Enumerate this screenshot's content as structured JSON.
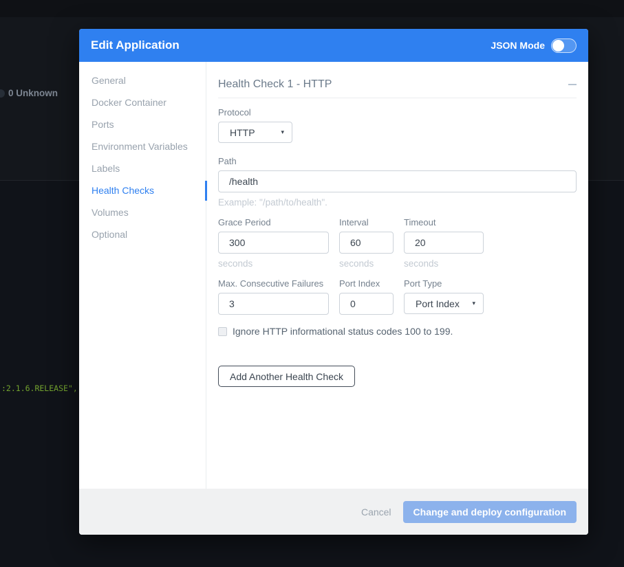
{
  "background": {
    "unknown_status": "0 Unknown",
    "code_snippet": ":2.1.6.RELEASE\","
  },
  "modal": {
    "title": "Edit Application",
    "json_mode": {
      "label": "JSON Mode",
      "enabled": false
    },
    "sidebar": {
      "items": [
        {
          "label": "General",
          "active": false
        },
        {
          "label": "Docker Container",
          "active": false
        },
        {
          "label": "Ports",
          "active": false
        },
        {
          "label": "Environment Variables",
          "active": false
        },
        {
          "label": "Labels",
          "active": false
        },
        {
          "label": "Health Checks",
          "active": true
        },
        {
          "label": "Volumes",
          "active": false
        },
        {
          "label": "Optional",
          "active": false
        }
      ]
    },
    "section": {
      "title": "Health Check 1 - HTTP"
    },
    "form": {
      "protocol": {
        "label": "Protocol",
        "value": "HTTP",
        "caret": "▾"
      },
      "path": {
        "label": "Path",
        "value": "/health",
        "hint": "Example: \"/path/to/health\"."
      },
      "grace_period": {
        "label": "Grace Period",
        "value": "300",
        "hint": "seconds"
      },
      "interval": {
        "label": "Interval",
        "value": "60",
        "hint": "seconds"
      },
      "timeout": {
        "label": "Timeout",
        "value": "20",
        "hint": "seconds"
      },
      "max_consecutive_failures": {
        "label": "Max. Consecutive Failures",
        "value": "3"
      },
      "port_index": {
        "label": "Port Index",
        "value": "0"
      },
      "port_type": {
        "label": "Port Type",
        "value": "Port Index",
        "caret": "▾"
      },
      "ignore_http_1xx": {
        "label": "Ignore HTTP informational status codes 100 to 199.",
        "checked": false
      },
      "add_button_label": "Add Another Health Check"
    },
    "footer": {
      "cancel_label": "Cancel",
      "submit_label": "Change and deploy configuration"
    },
    "colors": {
      "accent": "#2f80f0",
      "submit_button": "#8cb2ec",
      "code_green": "#73a32e"
    }
  }
}
